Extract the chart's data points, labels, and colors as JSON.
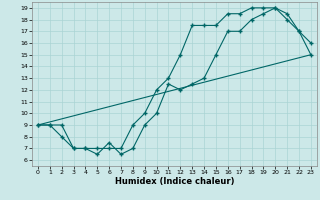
{
  "xlabel": "Humidex (Indice chaleur)",
  "bg_color": "#cce8e8",
  "grid_color": "#aad4d4",
  "line_color": "#006666",
  "xlim": [
    -0.5,
    23.5
  ],
  "ylim": [
    5.5,
    19.5
  ],
  "xticks": [
    0,
    1,
    2,
    3,
    4,
    5,
    6,
    7,
    8,
    9,
    10,
    11,
    12,
    13,
    14,
    15,
    16,
    17,
    18,
    19,
    20,
    21,
    22,
    23
  ],
  "yticks": [
    6,
    7,
    8,
    9,
    10,
    11,
    12,
    13,
    14,
    15,
    16,
    17,
    18,
    19
  ],
  "line1_x": [
    0,
    1,
    2,
    3,
    4,
    5,
    6,
    7,
    8,
    9,
    10,
    11,
    12,
    13,
    14,
    15,
    16,
    17,
    18,
    19,
    20,
    21,
    22,
    23
  ],
  "line1_y": [
    9,
    9,
    9,
    7,
    7,
    7,
    7,
    7,
    9,
    10,
    12,
    13,
    15,
    17.5,
    17.5,
    17.5,
    18.5,
    18.5,
    19,
    19,
    19,
    18,
    17,
    15
  ],
  "line2_x": [
    0,
    1,
    2,
    3,
    4,
    5,
    6,
    7,
    8,
    9,
    10,
    11,
    12,
    13,
    14,
    15,
    16,
    17,
    18,
    19,
    20,
    21,
    22,
    23
  ],
  "line2_y": [
    9,
    9,
    8,
    7,
    7,
    6.5,
    7.5,
    6.5,
    7,
    9,
    10,
    12.5,
    12,
    12.5,
    13,
    15,
    17,
    17,
    18,
    18.5,
    19,
    18.5,
    17,
    16
  ],
  "line3_x": [
    0,
    23
  ],
  "line3_y": [
    9,
    15
  ]
}
